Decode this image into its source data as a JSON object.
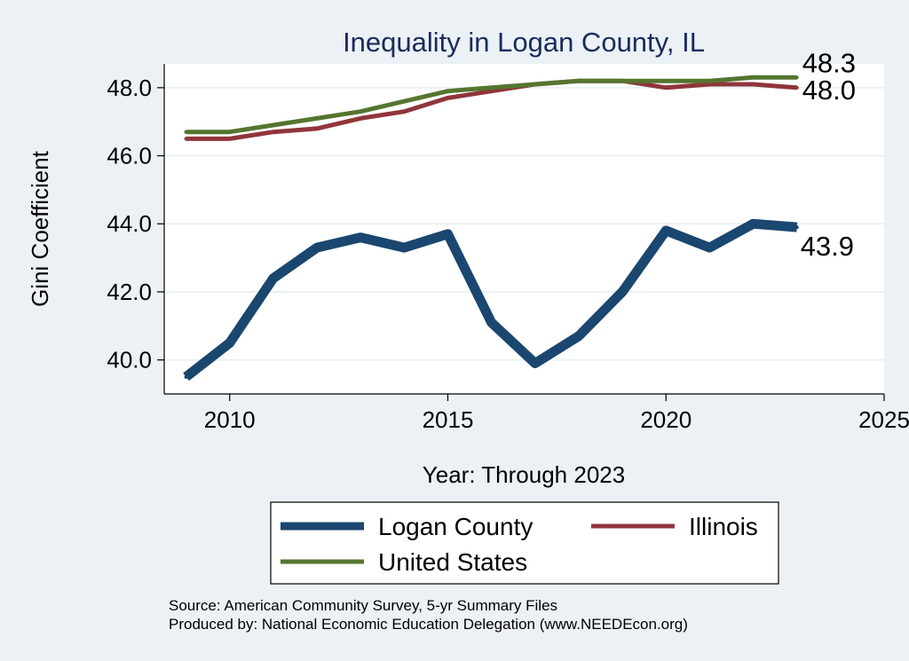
{
  "chart_data": {
    "type": "line",
    "title": "Inequality in Logan County, IL",
    "xlabel": "Year: Through 2023",
    "ylabel": "Gini Coefficient",
    "x": [
      2009,
      2010,
      2011,
      2012,
      2013,
      2014,
      2015,
      2016,
      2017,
      2018,
      2019,
      2020,
      2021,
      2022,
      2023
    ],
    "xlim": [
      2008.5,
      2025
    ],
    "ylim": [
      39.0,
      48.7
    ],
    "xticks": [
      2010,
      2015,
      2020,
      2025
    ],
    "yticks": [
      "40.0",
      "42.0",
      "44.0",
      "46.0",
      "48.0"
    ],
    "grid": true,
    "legend_position": "bottom",
    "series": [
      {
        "name": "Logan County",
        "color": "#1a476f",
        "values": [
          39.5,
          40.5,
          42.4,
          43.3,
          43.6,
          43.3,
          43.7,
          41.1,
          39.9,
          40.7,
          42.0,
          43.8,
          43.3,
          44.0,
          43.9
        ],
        "end_label": "43.9"
      },
      {
        "name": "Illinois",
        "color": "#90353b",
        "values": [
          46.5,
          46.5,
          46.7,
          46.8,
          47.1,
          47.3,
          47.7,
          47.9,
          48.1,
          48.2,
          48.2,
          48.0,
          48.1,
          48.1,
          48.0
        ],
        "end_label": "48.0"
      },
      {
        "name": "United States",
        "color": "#55752f",
        "values": [
          46.7,
          46.7,
          46.9,
          47.1,
          47.3,
          47.6,
          47.9,
          48.0,
          48.1,
          48.2,
          48.2,
          48.2,
          48.2,
          48.3,
          48.3
        ],
        "end_label": "48.3"
      }
    ],
    "notes": [
      "Source: American Community Survey, 5-yr Summary Files",
      "Produced by: National Economic Education Delegation (www.NEEDEcon.org)"
    ]
  }
}
